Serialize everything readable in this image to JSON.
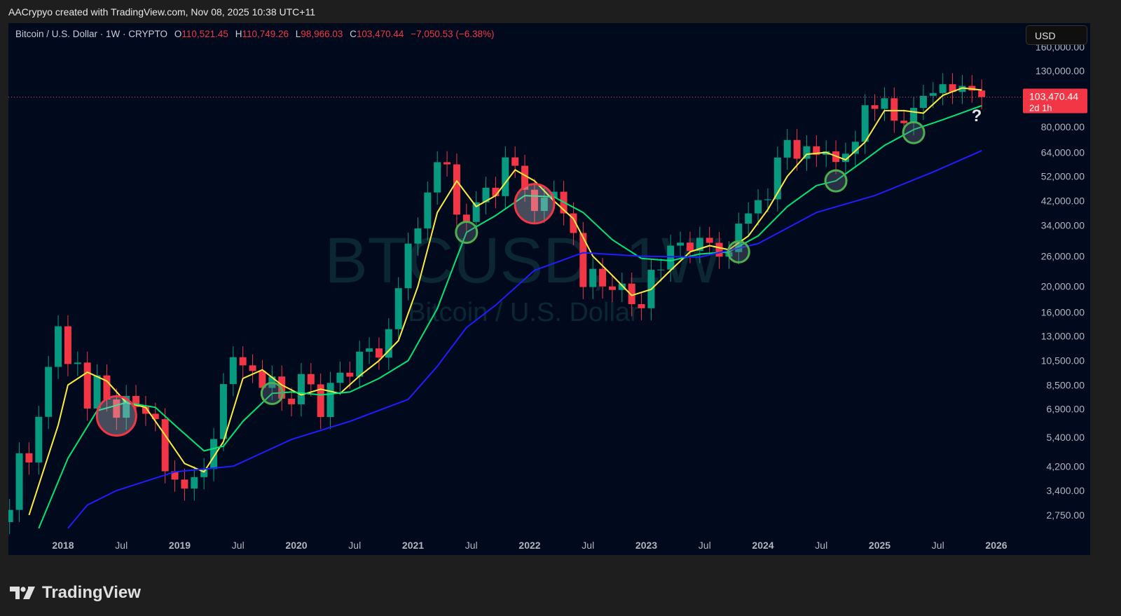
{
  "credit": "AACrypyo created with TradingView.com, Nov 08, 2025 10:38 UTC+11",
  "legend": {
    "symbol": "Bitcoin / U.S. Dollar · 1W · CRYPTO",
    "o_label": "O",
    "o": "110,521.45",
    "h_label": "H",
    "h": "110,749.26",
    "l_label": "L",
    "l": "98,966.03",
    "c_label": "C",
    "c": "103,470.44",
    "change": "−7,050.53 (−6.38%)"
  },
  "currency_button": "USD",
  "watermark": {
    "line1": "BTCUSD, 1W",
    "line2": "Bitcoin / U.S. Dollar"
  },
  "price_tag": {
    "price": "103,470.44",
    "countdown": "2d 1h",
    "color": "#f23645"
  },
  "annotation_text": "?",
  "footer_logo": "TradingView",
  "colors": {
    "background": "#010a1c",
    "up": "#089981",
    "down": "#f23645",
    "ma_fast": "#ffeb3b",
    "ma_mid": "#00e676",
    "ma_slow": "#1e1eff",
    "circle_red": "#f23645",
    "circle_green": "#4caf50"
  },
  "chart_data": {
    "type": "candlestick",
    "interval": "1W",
    "y_scale": "log",
    "ylim": [
      2400,
      165000
    ],
    "xlim": [
      "2017-07",
      "2026-04"
    ],
    "y_ticks": [
      "160,000.00",
      "130,000.00",
      "80,000.00",
      "64,000.00",
      "52,000.00",
      "42,000.00",
      "34,000.00",
      "26,000.00",
      "20,000.00",
      "16,000.00",
      "13,000.00",
      "10,500.00",
      "8,500.00",
      "6,900.00",
      "5,400.00",
      "4,200.00",
      "3,400.00",
      "2,750.00"
    ],
    "x_ticks": [
      [
        "2018",
        "2018-01"
      ],
      [
        "Jul",
        "2018-07"
      ],
      [
        "2019",
        "2019-01"
      ],
      [
        "Jul",
        "2019-07"
      ],
      [
        "2020",
        "2020-01"
      ],
      [
        "Jul",
        "2020-07"
      ],
      [
        "2021",
        "2021-01"
      ],
      [
        "Jul",
        "2021-07"
      ],
      [
        "2022",
        "2022-01"
      ],
      [
        "Jul",
        "2022-07"
      ],
      [
        "2023",
        "2023-01"
      ],
      [
        "Jul",
        "2023-07"
      ],
      [
        "2024",
        "2024-01"
      ],
      [
        "Jul",
        "2024-07"
      ],
      [
        "2025",
        "2025-01"
      ],
      [
        "Jul",
        "2025-07"
      ],
      [
        "2026",
        "2026-01"
      ]
    ],
    "closes": [
      [
        "2017-07",
        2875
      ],
      [
        "2017-08",
        4700
      ],
      [
        "2017-09",
        4340
      ],
      [
        "2017-10",
        6450
      ],
      [
        "2017-11",
        9950
      ],
      [
        "2017-12",
        14150
      ],
      [
        "2018-01",
        10200
      ],
      [
        "2018-02",
        10330
      ],
      [
        "2018-03",
        6930
      ],
      [
        "2018-04",
        9240
      ],
      [
        "2018-05",
        7500
      ],
      [
        "2018-06",
        6400
      ],
      [
        "2018-07",
        7730
      ],
      [
        "2018-08",
        7030
      ],
      [
        "2018-09",
        6625
      ],
      [
        "2018-10",
        6320
      ],
      [
        "2018-11",
        4020
      ],
      [
        "2018-12",
        3740
      ],
      [
        "2019-01",
        3460
      ],
      [
        "2019-02",
        3820
      ],
      [
        "2019-03",
        4100
      ],
      [
        "2019-04",
        5320
      ],
      [
        "2019-05",
        8570
      ],
      [
        "2019-06",
        10820
      ],
      [
        "2019-07",
        10080
      ],
      [
        "2019-08",
        9600
      ],
      [
        "2019-09",
        8290
      ],
      [
        "2019-10",
        9150
      ],
      [
        "2019-11",
        7550
      ],
      [
        "2019-12",
        7190
      ],
      [
        "2020-01",
        9350
      ],
      [
        "2020-02",
        8550
      ],
      [
        "2020-03",
        6440
      ],
      [
        "2020-04",
        8660
      ],
      [
        "2020-05",
        9460
      ],
      [
        "2020-06",
        9140
      ],
      [
        "2020-07",
        11350
      ],
      [
        "2020-08",
        11680
      ],
      [
        "2020-09",
        10780
      ],
      [
        "2020-10",
        13800
      ],
      [
        "2020-11",
        19700
      ],
      [
        "2020-12",
        29000
      ],
      [
        "2021-01",
        33100
      ],
      [
        "2021-02",
        45200
      ],
      [
        "2021-03",
        58800
      ],
      [
        "2021-04",
        57700
      ],
      [
        "2021-05",
        37300
      ],
      [
        "2021-06",
        35000
      ],
      [
        "2021-07",
        41500
      ],
      [
        "2021-08",
        47100
      ],
      [
        "2021-09",
        43800
      ],
      [
        "2021-10",
        61300
      ],
      [
        "2021-11",
        57000
      ],
      [
        "2021-12",
        46300
      ],
      [
        "2022-01",
        38500
      ],
      [
        "2022-02",
        43200
      ],
      [
        "2022-03",
        45500
      ],
      [
        "2022-04",
        37700
      ],
      [
        "2022-05",
        31800
      ],
      [
        "2022-06",
        19900
      ],
      [
        "2022-07",
        23300
      ],
      [
        "2022-08",
        20000
      ],
      [
        "2022-09",
        19400
      ],
      [
        "2022-10",
        20500
      ],
      [
        "2022-11",
        17150
      ],
      [
        "2022-12",
        16550
      ],
      [
        "2023-01",
        23100
      ],
      [
        "2023-02",
        23150
      ],
      [
        "2023-03",
        28500
      ],
      [
        "2023-04",
        29250
      ],
      [
        "2023-05",
        27200
      ],
      [
        "2023-06",
        30500
      ],
      [
        "2023-07",
        29200
      ],
      [
        "2023-08",
        25900
      ],
      [
        "2023-09",
        26950
      ],
      [
        "2023-10",
        34500
      ],
      [
        "2023-11",
        37700
      ],
      [
        "2023-12",
        42300
      ],
      [
        "2024-01",
        42600
      ],
      [
        "2024-02",
        61200
      ],
      [
        "2024-03",
        71300
      ],
      [
        "2024-04",
        60600
      ],
      [
        "2024-05",
        67500
      ],
      [
        "2024-06",
        62700
      ],
      [
        "2024-07",
        64600
      ],
      [
        "2024-08",
        58900
      ],
      [
        "2024-09",
        63300
      ],
      [
        "2024-10",
        70200
      ],
      [
        "2024-11",
        96400
      ],
      [
        "2024-12",
        93400
      ],
      [
        "2025-01",
        102400
      ],
      [
        "2025-02",
        84300
      ],
      [
        "2025-03",
        82500
      ],
      [
        "2025-04",
        94200
      ],
      [
        "2025-05",
        104600
      ],
      [
        "2025-06",
        107100
      ],
      [
        "2025-07",
        115700
      ],
      [
        "2025-08",
        108200
      ],
      [
        "2025-09",
        114000
      ],
      [
        "2025-10",
        109500
      ],
      [
        "2025-11",
        103470.44
      ]
    ],
    "series": [
      {
        "color": "#ffeb3b",
        "points": [
          [
            "2017-09",
            2750
          ],
          [
            "2017-12",
            6000
          ],
          [
            "2018-01",
            8500
          ],
          [
            "2018-03",
            9500
          ],
          [
            "2018-05",
            8800
          ],
          [
            "2018-07",
            7300
          ],
          [
            "2018-09",
            7000
          ],
          [
            "2018-11",
            5500
          ],
          [
            "2019-01",
            4300
          ],
          [
            "2019-03",
            4000
          ],
          [
            "2019-05",
            5200
          ],
          [
            "2019-07",
            9000
          ],
          [
            "2019-09",
            9700
          ],
          [
            "2019-11",
            8500
          ],
          [
            "2020-01",
            7800
          ],
          [
            "2020-03",
            8200
          ],
          [
            "2020-05",
            7900
          ],
          [
            "2020-07",
            9200
          ],
          [
            "2020-09",
            10500
          ],
          [
            "2020-11",
            12500
          ],
          [
            "2021-01",
            20000
          ],
          [
            "2021-03",
            38000
          ],
          [
            "2021-05",
            50000
          ],
          [
            "2021-07",
            40000
          ],
          [
            "2021-09",
            44000
          ],
          [
            "2021-11",
            55000
          ],
          [
            "2022-01",
            50000
          ],
          [
            "2022-03",
            42000
          ],
          [
            "2022-05",
            36000
          ],
          [
            "2022-07",
            26000
          ],
          [
            "2022-09",
            22000
          ],
          [
            "2022-11",
            18500
          ],
          [
            "2023-01",
            19500
          ],
          [
            "2023-03",
            23000
          ],
          [
            "2023-05",
            27000
          ],
          [
            "2023-07",
            28500
          ],
          [
            "2023-09",
            27500
          ],
          [
            "2023-11",
            31000
          ],
          [
            "2024-01",
            39000
          ],
          [
            "2024-03",
            52000
          ],
          [
            "2024-05",
            63000
          ],
          [
            "2024-07",
            64000
          ],
          [
            "2024-09",
            60000
          ],
          [
            "2024-11",
            70000
          ],
          [
            "2025-01",
            92000
          ],
          [
            "2025-03",
            92000
          ],
          [
            "2025-05",
            90000
          ],
          [
            "2025-07",
            105000
          ],
          [
            "2025-09",
            112000
          ],
          [
            "2025-11",
            110000
          ]
        ]
      },
      {
        "color": "#00e676",
        "points": [
          [
            "2017-10",
            2450
          ],
          [
            "2018-01",
            4500
          ],
          [
            "2018-04",
            6800
          ],
          [
            "2018-07",
            7300
          ],
          [
            "2018-10",
            7000
          ],
          [
            "2018-12",
            6000
          ],
          [
            "2019-03",
            4800
          ],
          [
            "2019-05",
            5000
          ],
          [
            "2019-07",
            6200
          ],
          [
            "2019-10",
            7900
          ],
          [
            "2019-12",
            8000
          ],
          [
            "2020-03",
            7800
          ],
          [
            "2020-06",
            8000
          ],
          [
            "2020-09",
            9000
          ],
          [
            "2020-12",
            10500
          ],
          [
            "2021-03",
            16500
          ],
          [
            "2021-06",
            32000
          ],
          [
            "2021-09",
            37000
          ],
          [
            "2021-12",
            44000
          ],
          [
            "2022-03",
            43500
          ],
          [
            "2022-06",
            38000
          ],
          [
            "2022-09",
            30000
          ],
          [
            "2022-12",
            25500
          ],
          [
            "2023-03",
            25000
          ],
          [
            "2023-06",
            26500
          ],
          [
            "2023-09",
            27000
          ],
          [
            "2023-12",
            31000
          ],
          [
            "2024-03",
            40000
          ],
          [
            "2024-06",
            48000
          ],
          [
            "2024-08",
            50000
          ],
          [
            "2024-11",
            60000
          ],
          [
            "2025-01",
            68000
          ],
          [
            "2025-04",
            78000
          ],
          [
            "2025-07",
            85000
          ],
          [
            "2025-11",
            96000
          ]
        ]
      },
      {
        "color": "#1e1eff",
        "points": [
          [
            "2018-01",
            2450
          ],
          [
            "2018-03",
            3000
          ],
          [
            "2018-06",
            3400
          ],
          [
            "2018-12",
            4000
          ],
          [
            "2019-06",
            4200
          ],
          [
            "2019-12",
            5300
          ],
          [
            "2020-06",
            6200
          ],
          [
            "2020-12",
            7500
          ],
          [
            "2021-03",
            10000
          ],
          [
            "2021-06",
            14000
          ],
          [
            "2021-09",
            17000
          ],
          [
            "2022-01",
            23000
          ],
          [
            "2022-06",
            26800
          ],
          [
            "2022-12",
            26000
          ],
          [
            "2023-06",
            25800
          ],
          [
            "2023-12",
            29000
          ],
          [
            "2024-06",
            38000
          ],
          [
            "2024-12",
            44000
          ],
          [
            "2025-06",
            54000
          ],
          [
            "2025-11",
            65000
          ]
        ]
      }
    ],
    "annotations": [
      {
        "type": "circle",
        "color": "red",
        "date": "2018-06",
        "price": 6500
      },
      {
        "type": "circle",
        "color": "green",
        "date": "2019-10",
        "price": 7900
      },
      {
        "type": "circle",
        "color": "green",
        "date": "2021-06",
        "price": 32000
      },
      {
        "type": "circle",
        "color": "red",
        "date": "2022-01",
        "price": 41000
      },
      {
        "type": "circle",
        "color": "green",
        "date": "2023-10",
        "price": 27000
      },
      {
        "type": "circle",
        "color": "green",
        "date": "2024-08",
        "price": 50000
      },
      {
        "type": "circle",
        "color": "green",
        "date": "2025-04",
        "price": 76000
      }
    ],
    "last_price": 103470.44
  }
}
